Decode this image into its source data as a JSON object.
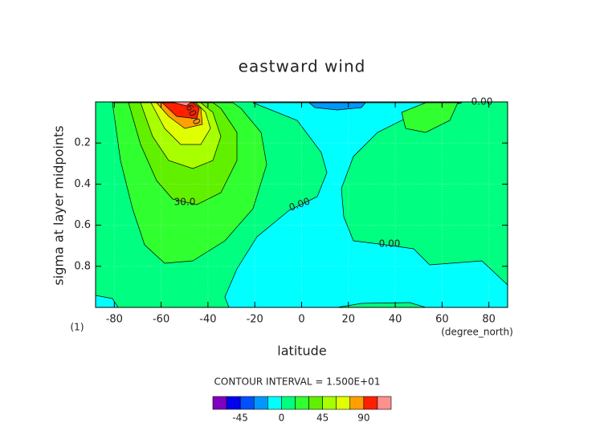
{
  "chart_data": {
    "type": "contour",
    "title": "eastward wind",
    "xlabel": "latitude",
    "ylabel": "sigma at layer midpoints",
    "xunits": "(degree_north)",
    "yunits": "(1)",
    "xlim": [
      -88,
      88
    ],
    "ylim": [
      1,
      0
    ],
    "xticks": [
      -80,
      -60,
      -40,
      -20,
      0,
      20,
      40,
      60,
      80
    ],
    "yticks": [
      0.2,
      0.4,
      0.6,
      0.8
    ],
    "contour_interval_label": "CONTOUR INTERVAL = 1.500E+01",
    "levels": [
      -75,
      -60,
      -45,
      -30,
      -15,
      0,
      15,
      30,
      45,
      60,
      75,
      90,
      105,
      120
    ],
    "colors": [
      "#8000c0",
      "#0000ee",
      "#0050ff",
      "#0098ff",
      "#00ffff",
      "#00ff80",
      "#30ff30",
      "#60f000",
      "#a8ff00",
      "#e0ff00",
      "#ffa000",
      "#ff2000",
      "#ff9090"
    ],
    "colorbar_ticks": [
      -45,
      0,
      45,
      90
    ],
    "contour_labels": [
      "0.00",
      "0.00",
      "0.00",
      "30.0",
      "60.0"
    ]
  }
}
